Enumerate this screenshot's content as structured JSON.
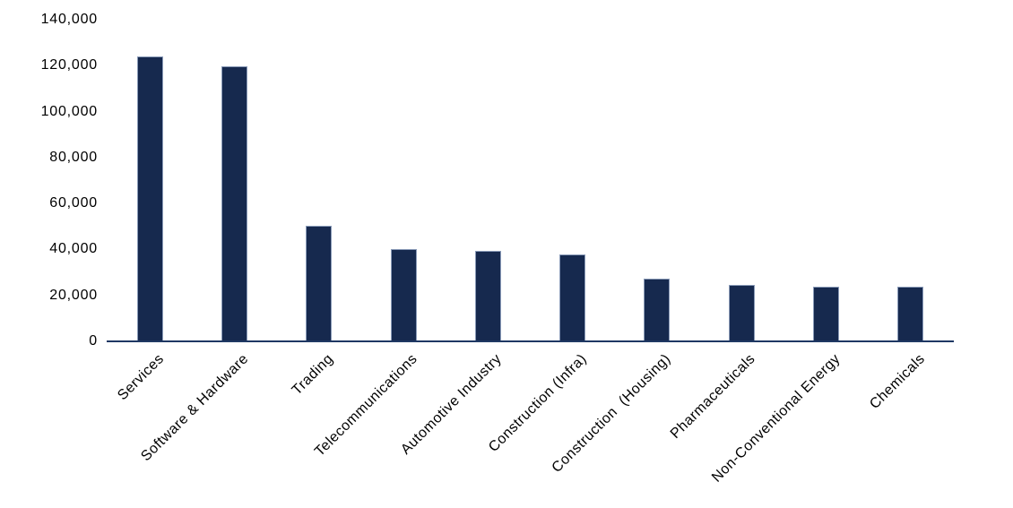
{
  "chart_data": {
    "type": "bar",
    "title": "",
    "xlabel": "",
    "ylabel": "",
    "categories": [
      "Services",
      "Software & Hardware",
      "Trading",
      "Telecommunications",
      "Automotive Industry",
      "Construction (Infra)",
      "Construction  (Housing)",
      "Pharmaceuticals",
      "Non-Conventional Energy",
      "Chemicals"
    ],
    "values": [
      123900,
      119700,
      50400,
      40100,
      39300,
      37900,
      27300,
      24500,
      23800,
      23600
    ],
    "ylim": [
      0,
      140000
    ],
    "y_ticks": [
      {
        "value": 0,
        "label": "0"
      },
      {
        "value": 20000,
        "label": "20,000"
      },
      {
        "value": 40000,
        "label": "40,000"
      },
      {
        "value": 60000,
        "label": "60,000"
      },
      {
        "value": 80000,
        "label": "80,000"
      },
      {
        "value": 100000,
        "label": "100,000"
      },
      {
        "value": 120000,
        "label": "120,000"
      },
      {
        "value": 140000,
        "label": "140,000"
      }
    ],
    "grid": false,
    "legend": false,
    "x_label_rotation_deg": 45,
    "colors": {
      "bar_fill": "#16294E",
      "bar_border": "#8A9BB8",
      "axis_line": "#1F3864",
      "text": "#000000",
      "background": "#FFFFFF"
    }
  }
}
